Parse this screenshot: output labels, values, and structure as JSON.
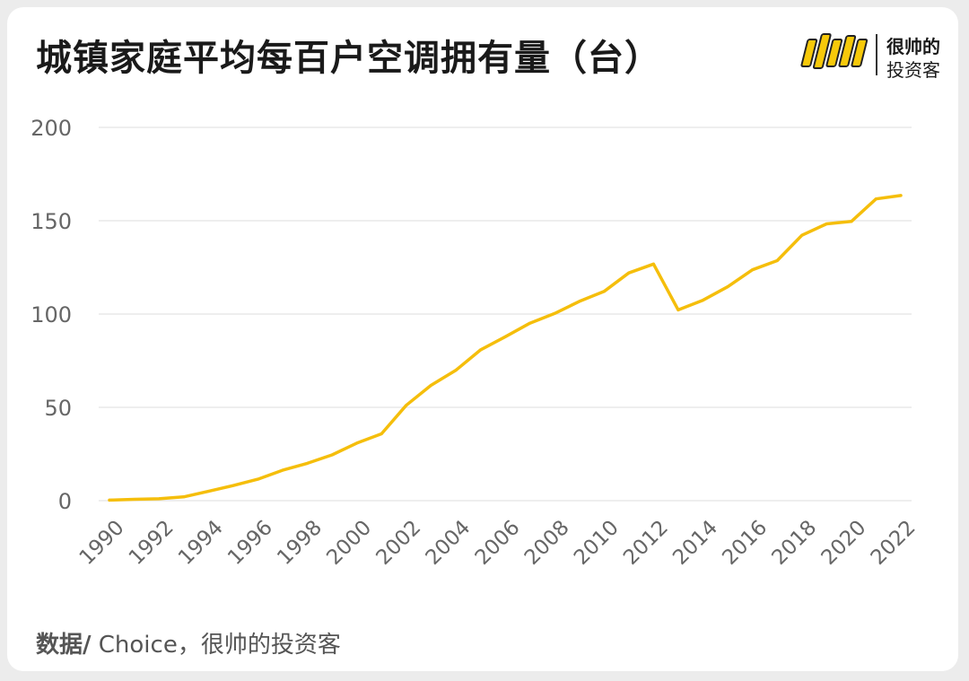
{
  "header": {
    "title": "城镇家庭平均每百户空调拥有量（台）"
  },
  "brand": {
    "line1": "很帅的",
    "line2": "投资客"
  },
  "footer": {
    "source_label": "数据/",
    "source_text": " Choice，很帅的投资客"
  },
  "colors": {
    "line": "#f5be0b",
    "grid": "#e3e3e3",
    "axis_text": "#666666",
    "logo_yellow": "#f7c90a"
  },
  "chart_data": {
    "type": "line",
    "title": "城镇家庭平均每百户空调拥有量（台）",
    "xlabel": "",
    "ylabel": "",
    "ylim": [
      0,
      200
    ],
    "yticks": [
      "0",
      "50",
      "100",
      "150",
      "200"
    ],
    "xtick_labels": [
      "1990",
      "1992",
      "1994",
      "1996",
      "1998",
      "2000",
      "2002",
      "2004",
      "2006",
      "2008",
      "2010",
      "2012",
      "2014",
      "2016",
      "2018",
      "2020",
      "2022"
    ],
    "grid": true,
    "x": [
      1990,
      1991,
      1992,
      1993,
      1994,
      1995,
      1996,
      1997,
      1998,
      1999,
      2000,
      2001,
      2002,
      2003,
      2004,
      2005,
      2006,
      2007,
      2008,
      2009,
      2010,
      2011,
      2012,
      2013,
      2014,
      2015,
      2016,
      2017,
      2018,
      2019,
      2020,
      2021,
      2022
    ],
    "series": [
      {
        "values": [
          0.3,
          0.7,
          1.0,
          2.0,
          5.0,
          8.1,
          11.5,
          16.3,
          20.0,
          24.5,
          30.8,
          35.8,
          51.1,
          61.8,
          69.8,
          80.7,
          87.8,
          95.1,
          100.3,
          106.8,
          112.1,
          122.0,
          126.8,
          102.2,
          107.4,
          114.6,
          123.7,
          128.6,
          142.2,
          148.3,
          149.6,
          161.7,
          163.5
        ]
      }
    ]
  }
}
